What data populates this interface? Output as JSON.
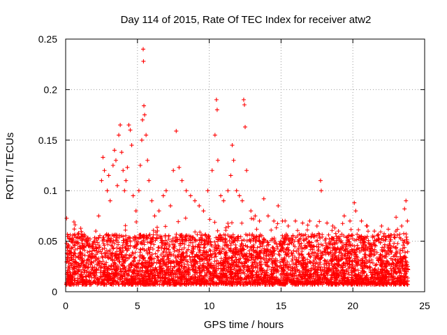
{
  "chart_data": {
    "type": "scatter",
    "title": "Day 114 of 2015, Rate Of TEC Index for receiver atw2",
    "xlabel": "GPS time / hours",
    "ylabel": "ROTI / TECUs",
    "xlim": [
      0,
      25
    ],
    "ylim": [
      0,
      0.25
    ],
    "xticks": [
      "0",
      "5",
      "10",
      "15",
      "20",
      "25"
    ],
    "yticks": [
      "0",
      "0.05",
      "0.1",
      "0.15",
      "0.2",
      "0.25"
    ],
    "grid": true,
    "marker": "+",
    "color": "#ff0000",
    "series": [
      {
        "values": [
          [
            0.2,
            0.045
          ],
          [
            0.4,
            0.038
          ],
          [
            0.6,
            0.062
          ],
          [
            0.9,
            0.058
          ],
          [
            1.2,
            0.055
          ],
          [
            1.5,
            0.05
          ],
          [
            1.8,
            0.045
          ],
          [
            2.1,
            0.06
          ],
          [
            2.3,
            0.075
          ],
          [
            2.5,
            0.11
          ],
          [
            2.6,
            0.133
          ],
          [
            2.7,
            0.12
          ],
          [
            2.9,
            0.1
          ],
          [
            3.0,
            0.115
          ],
          [
            3.1,
            0.09
          ],
          [
            3.3,
            0.125
          ],
          [
            3.4,
            0.14
          ],
          [
            3.5,
            0.13
          ],
          [
            3.6,
            0.105
          ],
          [
            3.7,
            0.155
          ],
          [
            3.8,
            0.165
          ],
          [
            3.9,
            0.138
          ],
          [
            4.0,
            0.12
          ],
          [
            4.1,
            0.1
          ],
          [
            4.2,
            0.11
          ],
          [
            4.3,
            0.123
          ],
          [
            4.4,
            0.165
          ],
          [
            4.5,
            0.16
          ],
          [
            4.6,
            0.145
          ],
          [
            4.7,
            0.095
          ],
          [
            4.9,
            0.08
          ],
          [
            5.1,
            0.1
          ],
          [
            5.2,
            0.125
          ],
          [
            5.3,
            0.15
          ],
          [
            5.35,
            0.17
          ],
          [
            5.4,
            0.24
          ],
          [
            5.42,
            0.228
          ],
          [
            5.45,
            0.184
          ],
          [
            5.5,
            0.175
          ],
          [
            5.6,
            0.155
          ],
          [
            5.7,
            0.13
          ],
          [
            5.8,
            0.11
          ],
          [
            6.0,
            0.09
          ],
          [
            6.2,
            0.075
          ],
          [
            6.5,
            0.08
          ],
          [
            6.8,
            0.095
          ],
          [
            7.0,
            0.1
          ],
          [
            7.3,
            0.085
          ],
          [
            7.5,
            0.12
          ],
          [
            7.7,
            0.159
          ],
          [
            7.9,
            0.123
          ],
          [
            8.1,
            0.11
          ],
          [
            8.4,
            0.1
          ],
          [
            8.7,
            0.095
          ],
          [
            9.0,
            0.09
          ],
          [
            9.3,
            0.085
          ],
          [
            9.6,
            0.08
          ],
          [
            9.9,
            0.1
          ],
          [
            10.2,
            0.12
          ],
          [
            10.4,
            0.155
          ],
          [
            10.5,
            0.19
          ],
          [
            10.55,
            0.18
          ],
          [
            10.6,
            0.13
          ],
          [
            10.8,
            0.095
          ],
          [
            11.0,
            0.09
          ],
          [
            11.3,
            0.1
          ],
          [
            11.5,
            0.115
          ],
          [
            11.6,
            0.145
          ],
          [
            11.7,
            0.13
          ],
          [
            11.9,
            0.1
          ],
          [
            12.1,
            0.095
          ],
          [
            12.3,
            0.09
          ],
          [
            12.4,
            0.19
          ],
          [
            12.45,
            0.185
          ],
          [
            12.5,
            0.163
          ],
          [
            12.6,
            0.12
          ],
          [
            12.9,
            0.08
          ],
          [
            13.2,
            0.075
          ],
          [
            13.5,
            0.07
          ],
          [
            13.8,
            0.092
          ],
          [
            14.1,
            0.075
          ],
          [
            14.5,
            0.07
          ],
          [
            14.8,
            0.085
          ],
          [
            15.1,
            0.07
          ],
          [
            15.5,
            0.065
          ],
          [
            16.0,
            0.07
          ],
          [
            16.5,
            0.068
          ],
          [
            17.0,
            0.07
          ],
          [
            17.5,
            0.065
          ],
          [
            17.75,
            0.11
          ],
          [
            17.8,
            0.1
          ],
          [
            18.2,
            0.068
          ],
          [
            18.6,
            0.065
          ],
          [
            19.0,
            0.06
          ],
          [
            19.4,
            0.075
          ],
          [
            19.8,
            0.07
          ],
          [
            20.1,
            0.088
          ],
          [
            20.2,
            0.08
          ],
          [
            20.6,
            0.07
          ],
          [
            21.0,
            0.065
          ],
          [
            21.5,
            0.06
          ],
          [
            22.0,
            0.065
          ],
          [
            22.5,
            0.055
          ],
          [
            23.0,
            0.06
          ],
          [
            23.4,
            0.065
          ],
          [
            23.6,
            0.082
          ],
          [
            23.7,
            0.09
          ],
          [
            23.8,
            0.07
          ]
        ]
      }
    ]
  }
}
